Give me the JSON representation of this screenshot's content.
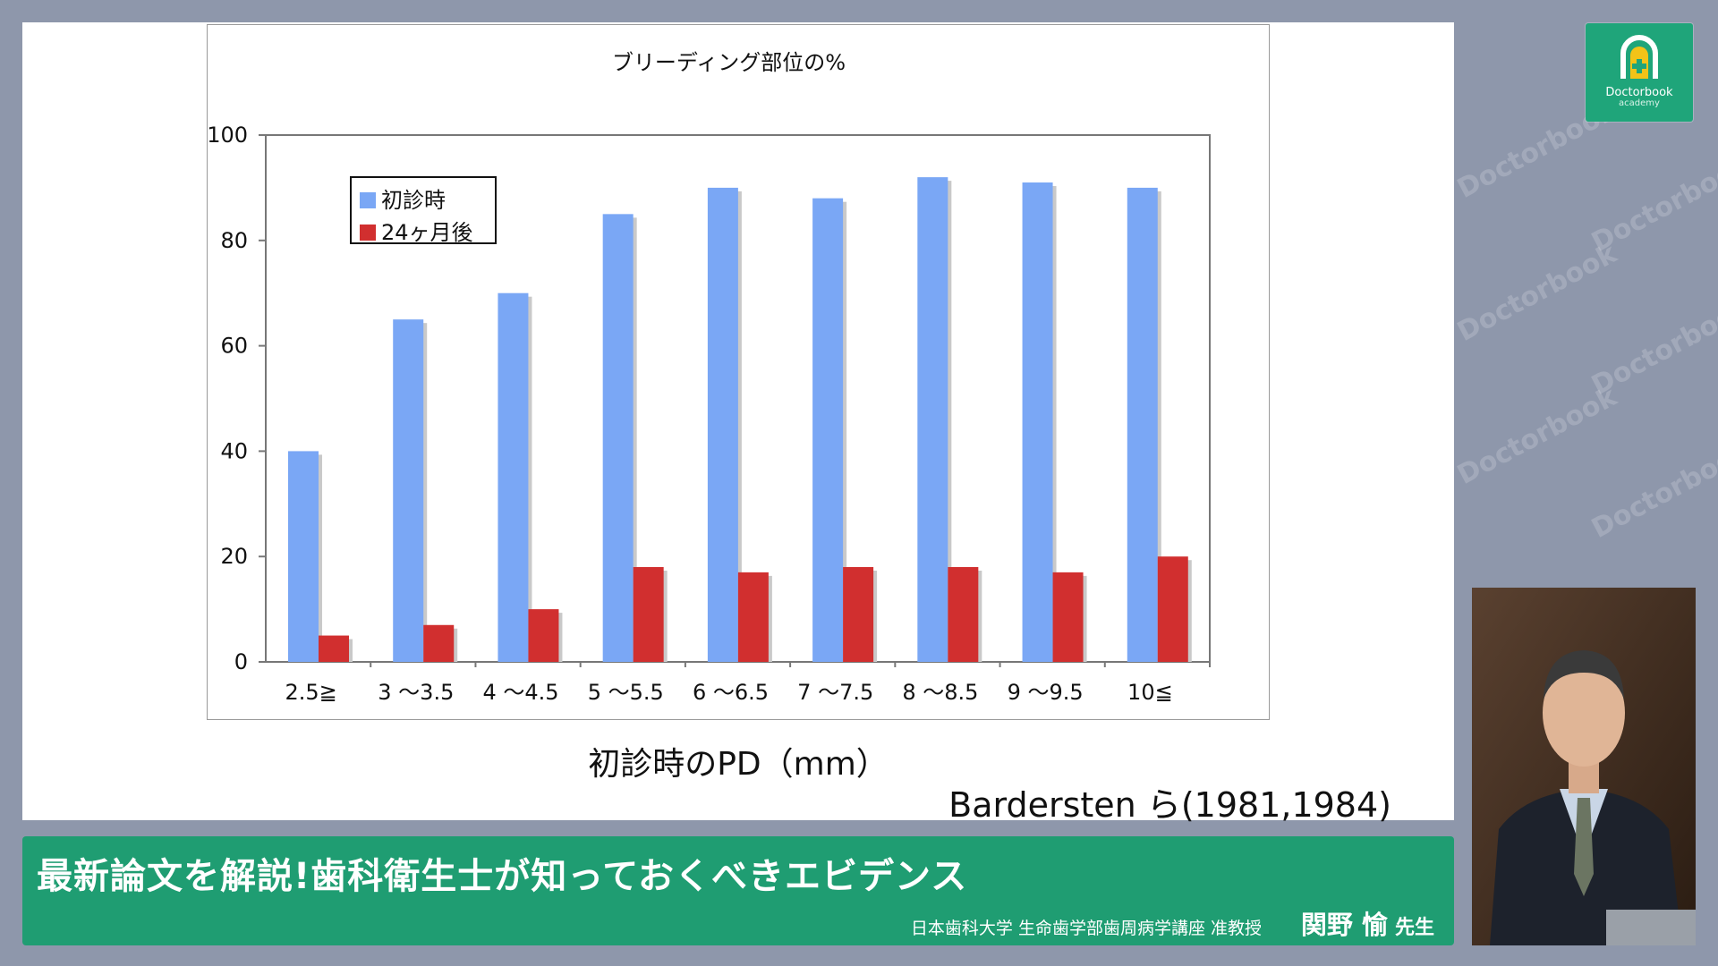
{
  "chart_data": {
    "type": "bar",
    "title": "ブリーディング部位の%",
    "xlabel": "初診時のPD（mm）",
    "ylabel": "",
    "ylim": [
      0,
      100
    ],
    "yticks": [
      0,
      20,
      40,
      60,
      80,
      100
    ],
    "categories": [
      "2.5≧",
      "3 〜3.5",
      "4 〜4.5",
      "5 〜5.5",
      "6 〜6.5",
      "7 〜7.5",
      "8 〜8.5",
      "9 〜9.5",
      "10≦"
    ],
    "series": [
      {
        "name": "初診時",
        "color": "#7aa7f5",
        "values": [
          40,
          65,
          70,
          85,
          90,
          88,
          92,
          91,
          90
        ]
      },
      {
        "name": "24ヶ月後",
        "color": "#d12f2f",
        "values": [
          5,
          7,
          10,
          18,
          17,
          18,
          18,
          17,
          20
        ]
      }
    ],
    "legend_position": "top-left",
    "grid": false
  },
  "citation": "Bardersten ら(1981,1984)",
  "banner": {
    "title": "最新論文を解説!歯科衛生士が知っておくべきエビデンス",
    "affiliation": "日本歯科大学 生命歯学部歯周病学講座 准教授",
    "speaker_name": "関野 愉",
    "honorific": "先生"
  },
  "logo": {
    "name": "Doctorbook",
    "sub": "academy"
  },
  "watermark_text": "Doctorbook academy",
  "colors": {
    "banner": "#1f9d72",
    "bar_initial": "#7aa7f5",
    "bar_after": "#d12f2f"
  }
}
